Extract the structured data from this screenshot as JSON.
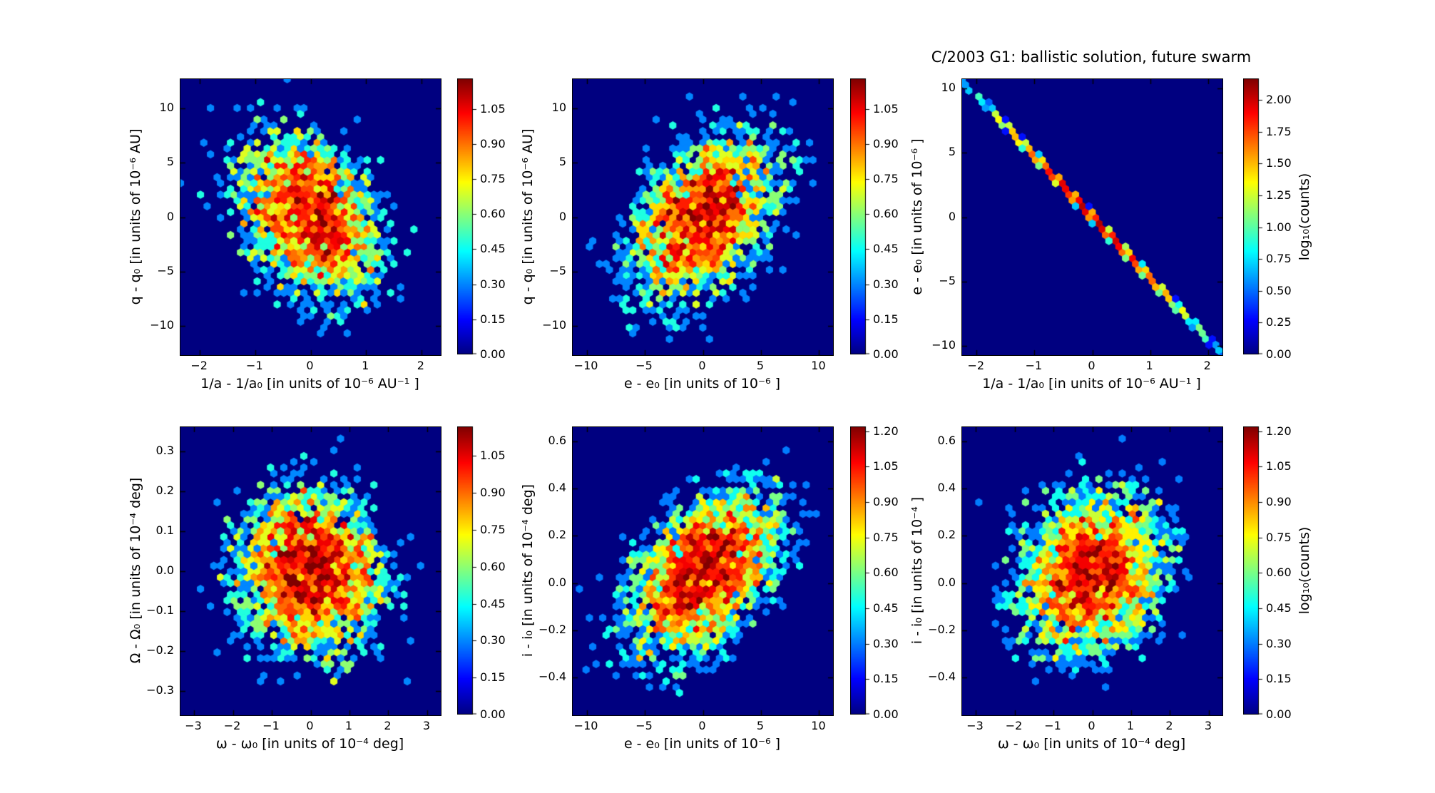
{
  "title": "C/2003 G1:  ballistic solution, future swarm",
  "colormap": "jet",
  "plot_background": "#000080",
  "page_background": "#ffffff",
  "chart_data": [
    {
      "type": "heatmap",
      "subtype": "hexbin",
      "name": "plot-q-vs-inverse-a",
      "xlabel": "1/a - 1/a₀ [in units of 10⁻⁶ AU⁻¹ ]",
      "ylabel": "q - q₀ [in units of 10⁻⁶ AU]",
      "xlim": [
        -2.35,
        2.35
      ],
      "ylim": [
        -12.7,
        12.7
      ],
      "xtick_vals": [
        -2,
        -1,
        0,
        1,
        2
      ],
      "xtick_labels": [
        "−2",
        "−1",
        "0",
        "1",
        "2"
      ],
      "ytick_vals": [
        10,
        5,
        0,
        -5,
        -10
      ],
      "ytick_labels": [
        "10",
        "5",
        "0",
        "−5",
        "−10"
      ],
      "distribution": {
        "kind": "gaussian",
        "cx": 0,
        "cy": 0,
        "sx": 0.72,
        "sy": 4.3,
        "rho": -0.32,
        "n": 3500,
        "seed": 101
      },
      "colorbar": {
        "vmax": 1.18,
        "tick_vals": [
          0,
          0.15,
          0.3,
          0.45,
          0.6,
          0.75,
          0.9,
          1.05
        ],
        "tick_labels": [
          "0.00",
          "0.15",
          "0.30",
          "0.45",
          "0.60",
          "0.75",
          "0.90",
          "1.05"
        ],
        "label": null
      }
    },
    {
      "type": "heatmap",
      "subtype": "hexbin",
      "name": "plot-q-vs-e",
      "xlabel": "e - e₀ [in units of 10⁻⁶ ]",
      "ylabel": "q - q₀ [in units of 10⁻⁶ AU]",
      "xlim": [
        -11.2,
        11.2
      ],
      "ylim": [
        -12.7,
        12.7
      ],
      "xtick_vals": [
        -10,
        -5,
        0,
        5,
        10
      ],
      "xtick_labels": [
        "−10",
        "−5",
        "0",
        "5",
        "10"
      ],
      "ytick_vals": [
        10,
        5,
        0,
        -5,
        -10
      ],
      "ytick_labels": [
        "10",
        "5",
        "0",
        "−5",
        "−10"
      ],
      "distribution": {
        "kind": "gaussian",
        "cx": 0,
        "cy": 0,
        "sx": 3.6,
        "sy": 4.3,
        "rho": 0.45,
        "n": 3500,
        "seed": 202
      },
      "colorbar": {
        "vmax": 1.18,
        "tick_vals": [
          0,
          0.15,
          0.3,
          0.45,
          0.6,
          0.75,
          0.9,
          1.05
        ],
        "tick_labels": [
          "0.00",
          "0.15",
          "0.30",
          "0.45",
          "0.60",
          "0.75",
          "0.90",
          "1.05"
        ],
        "label": null
      }
    },
    {
      "type": "heatmap",
      "subtype": "hexbin",
      "name": "plot-e-vs-inverse-a",
      "xlabel": "1/a - 1/a₀ [in units of 10⁻⁶ AU⁻¹ ]",
      "ylabel": "e - e₀ [in units of 10⁻⁶ ]",
      "xlim": [
        -2.25,
        2.25
      ],
      "ylim": [
        -10.7,
        10.7
      ],
      "xtick_vals": [
        -2,
        -1,
        0,
        1,
        2
      ],
      "xtick_labels": [
        "−2",
        "−1",
        "0",
        "1",
        "2"
      ],
      "ytick_vals": [
        10,
        5,
        0,
        -5,
        -10
      ],
      "ytick_labels": [
        "10",
        "5",
        "0",
        "−5",
        "−10"
      ],
      "distribution": {
        "kind": "line",
        "cx": 0,
        "sx": 0.85,
        "slope": -4.75,
        "sy": 0.06,
        "n": 2600,
        "seed": 303
      },
      "colorbar": {
        "vmax": 2.17,
        "tick_vals": [
          0,
          0.25,
          0.5,
          0.75,
          1.0,
          1.25,
          1.5,
          1.75,
          2.0
        ],
        "tick_labels": [
          "0.00",
          "0.25",
          "0.50",
          "0.75",
          "1.00",
          "1.25",
          "1.50",
          "1.75",
          "2.00"
        ],
        "label": "log₁₀(counts)"
      }
    },
    {
      "type": "heatmap",
      "subtype": "hexbin",
      "name": "plot-bigomega-vs-omega",
      "xlabel": "ω - ω₀ [in units of 10⁻⁴ deg]",
      "ylabel": "Ω - Ω₀ [in units of 10⁻⁴ deg]",
      "xlim": [
        -3.35,
        3.35
      ],
      "ylim": [
        -0.36,
        0.36
      ],
      "xtick_vals": [
        -3,
        -2,
        -1,
        0,
        1,
        2,
        3
      ],
      "xtick_labels": [
        "−3",
        "−2",
        "−1",
        "0",
        "1",
        "2",
        "3"
      ],
      "ytick_vals": [
        0.3,
        0.2,
        0.1,
        0.0,
        -0.1,
        -0.2,
        -0.3
      ],
      "ytick_labels": [
        "0.3",
        "0.2",
        "0.1",
        "0.0",
        "−0.1",
        "−0.2",
        "−0.3"
      ],
      "distribution": {
        "kind": "gaussian",
        "cx": 0,
        "cy": 0,
        "sx": 1.05,
        "sy": 0.115,
        "rho": -0.05,
        "n": 4000,
        "seed": 404
      },
      "colorbar": {
        "vmax": 1.17,
        "tick_vals": [
          0,
          0.15,
          0.3,
          0.45,
          0.6,
          0.75,
          0.9,
          1.05
        ],
        "tick_labels": [
          "0.00",
          "0.15",
          "0.30",
          "0.45",
          "0.60",
          "0.75",
          "0.90",
          "1.05"
        ],
        "label": null
      }
    },
    {
      "type": "heatmap",
      "subtype": "hexbin",
      "name": "plot-i-vs-e",
      "xlabel": "e - e₀ [in units of 10⁻⁶ ]",
      "ylabel": "i - i₀ [in units of 10⁻⁴ deg]",
      "xlim": [
        -11.2,
        11.2
      ],
      "ylim": [
        -0.56,
        0.66
      ],
      "xtick_vals": [
        -10,
        -5,
        0,
        5,
        10
      ],
      "xtick_labels": [
        "−10",
        "−5",
        "0",
        "5",
        "10"
      ],
      "ytick_vals": [
        0.6,
        0.4,
        0.2,
        0.0,
        -0.2,
        -0.4
      ],
      "ytick_labels": [
        "0.6",
        "0.4",
        "0.2",
        "0.0",
        "−0.2",
        "−0.4"
      ],
      "distribution": {
        "kind": "gaussian",
        "cx": 0,
        "cy": 0.04,
        "sx": 3.6,
        "sy": 0.195,
        "rho": 0.45,
        "n": 4000,
        "seed": 505
      },
      "colorbar": {
        "vmax": 1.22,
        "tick_vals": [
          0,
          0.15,
          0.3,
          0.45,
          0.6,
          0.75,
          0.9,
          1.05,
          1.2
        ],
        "tick_labels": [
          "0.00",
          "0.15",
          "0.30",
          "0.45",
          "0.60",
          "0.75",
          "0.90",
          "1.05",
          "1.20"
        ],
        "label": null
      }
    },
    {
      "type": "heatmap",
      "subtype": "hexbin",
      "name": "plot-i-vs-omega",
      "xlabel": "ω - ω₀ [in units of 10⁻⁴ deg]",
      "ylabel": "i - i₀ [in units of 10⁻⁴ ]",
      "xlim": [
        -3.35,
        3.35
      ],
      "ylim": [
        -0.56,
        0.66
      ],
      "xtick_vals": [
        -3,
        -2,
        -1,
        0,
        1,
        2,
        3
      ],
      "xtick_labels": [
        "−3",
        "−2",
        "−1",
        "0",
        "1",
        "2",
        "3"
      ],
      "ytick_vals": [
        0.6,
        0.4,
        0.2,
        0.0,
        -0.2,
        -0.4
      ],
      "ytick_labels": [
        "0.6",
        "0.4",
        "0.2",
        "0.0",
        "−0.2",
        "−0.4"
      ],
      "distribution": {
        "kind": "gaussian",
        "cx": 0,
        "cy": 0.04,
        "sx": 1.05,
        "sy": 0.195,
        "rho": 0.12,
        "n": 4000,
        "seed": 606
      },
      "colorbar": {
        "vmax": 1.22,
        "tick_vals": [
          0,
          0.15,
          0.3,
          0.45,
          0.6,
          0.75,
          0.9,
          1.05,
          1.2
        ],
        "tick_labels": [
          "0.00",
          "0.15",
          "0.30",
          "0.45",
          "0.60",
          "0.75",
          "0.90",
          "1.05",
          "1.20"
        ],
        "label": "log₁₀(counts)"
      }
    }
  ]
}
